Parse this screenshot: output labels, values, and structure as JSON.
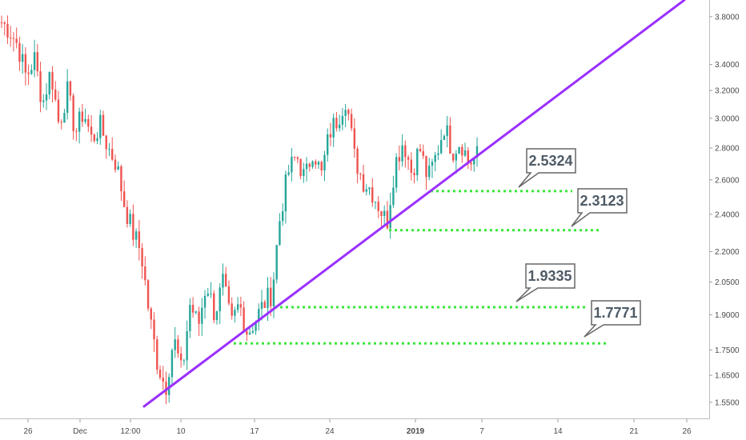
{
  "chart_data": {
    "type": "candlestick",
    "y_scale": "log",
    "ylim": [
      1.49,
      3.95
    ],
    "y_ticks": [
      "1.5500",
      "1.6500",
      "1.7500",
      "1.9000",
      "2.0500",
      "2.2000",
      "2.4000",
      "2.6000",
      "2.8000",
      "3.0000",
      "3.2000",
      "3.4000",
      "3.8000"
    ],
    "x_ticks": [
      {
        "label": "26",
        "bold": false
      },
      {
        "label": "Dec",
        "bold": false
      },
      {
        "label": "12:00",
        "bold": false
      },
      {
        "label": "10",
        "bold": false
      },
      {
        "label": "17",
        "bold": false
      },
      {
        "label": "24",
        "bold": false
      },
      {
        "label": "2019",
        "bold": true
      },
      {
        "label": "7",
        "bold": false
      },
      {
        "label": "14",
        "bold": false
      },
      {
        "label": "21",
        "bold": false
      },
      {
        "label": "26",
        "bold": false
      }
    ],
    "price_path": [
      3.75,
      3.68,
      3.55,
      3.3,
      3.45,
      3.1,
      3.35,
      2.95,
      3.2,
      2.9,
      3.05,
      2.85,
      2.95,
      2.8,
      2.7,
      2.45,
      2.3,
      2.2,
      1.9,
      1.7,
      1.6,
      1.8,
      1.65,
      1.95,
      1.85,
      2.05,
      1.9,
      2.05,
      1.85,
      1.95,
      1.82,
      1.88,
      1.95,
      2.0,
      2.4,
      2.65,
      2.75,
      2.6,
      2.8,
      2.62,
      2.9,
      3.0,
      3.15,
      2.75,
      2.6,
      2.55,
      2.45,
      2.35,
      2.7,
      2.85,
      2.65,
      2.8,
      2.6,
      2.75,
      2.95,
      2.78,
      2.85,
      2.7,
      2.75
    ],
    "support_levels": [
      {
        "value": 2.5324,
        "label": "2.5324"
      },
      {
        "value": 2.3123,
        "label": "2.3123"
      },
      {
        "value": 1.9335,
        "label": "1.9335"
      },
      {
        "value": 1.7771,
        "label": "1.7771"
      }
    ],
    "trendline": {
      "start_value": 1.535,
      "end_value": 3.95
    },
    "colors": {
      "up": "#26a69a",
      "down": "#ef5350",
      "trendline": "#9b30ff",
      "support": "#39e839",
      "callout_fill": "#ffffff",
      "callout_border": "#666666",
      "callout_text": "#4f5b66"
    }
  }
}
